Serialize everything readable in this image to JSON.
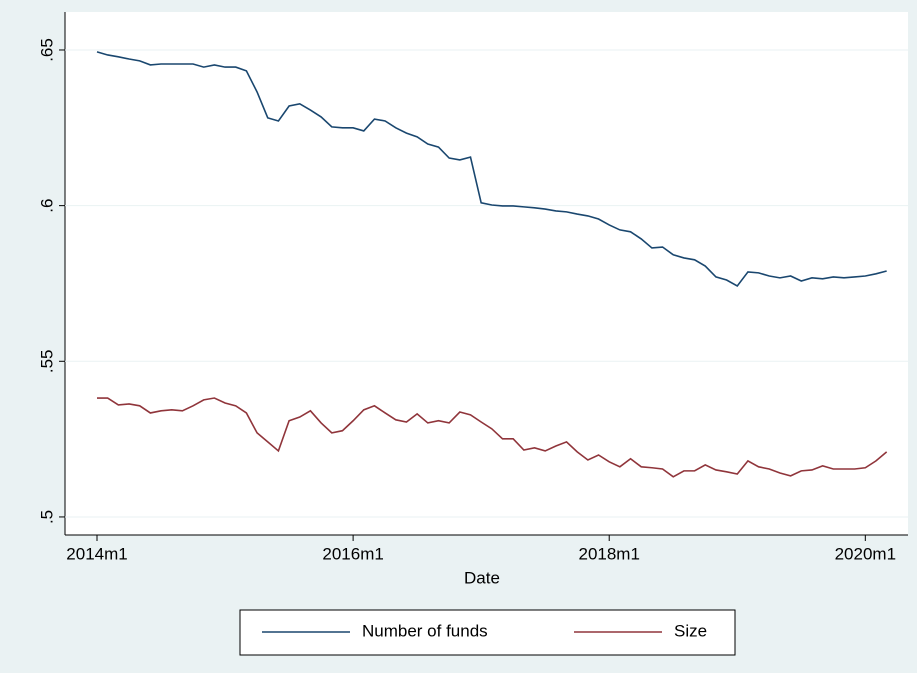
{
  "chart_data": {
    "type": "line",
    "x_label": "Date",
    "x": [
      648,
      649,
      650,
      651,
      652,
      653,
      654,
      655,
      656,
      657,
      658,
      659,
      660,
      661,
      662,
      663,
      664,
      665,
      666,
      667,
      668,
      669,
      670,
      671,
      672,
      673,
      674,
      675,
      676,
      677,
      678,
      679,
      680,
      681,
      682,
      683,
      684,
      685,
      686,
      687,
      688,
      689,
      690,
      691,
      692,
      693,
      694,
      695,
      696,
      697,
      698,
      699,
      700,
      701,
      702,
      703,
      704,
      705,
      706,
      707,
      708,
      709,
      710,
      711,
      712,
      713,
      714,
      715,
      716,
      717,
      718,
      719,
      720,
      721,
      722
    ],
    "series": [
      {
        "name": "Number of funds",
        "color": "#1a476f",
        "values": [
          0.6494,
          0.6484,
          0.6478,
          0.6471,
          0.6465,
          0.6452,
          0.6455,
          0.6455,
          0.6455,
          0.6455,
          0.6445,
          0.6452,
          0.6445,
          0.6445,
          0.6433,
          0.6365,
          0.6282,
          0.6272,
          0.632,
          0.6327,
          0.6307,
          0.6285,
          0.6253,
          0.625,
          0.625,
          0.624,
          0.6278,
          0.6272,
          0.625,
          0.6233,
          0.6221,
          0.6198,
          0.6188,
          0.6153,
          0.6147,
          0.6156,
          0.6009,
          0.6002,
          0.5999,
          0.5999,
          0.5996,
          0.5993,
          0.5989,
          0.5983,
          0.598,
          0.5973,
          0.5967,
          0.5957,
          0.5938,
          0.5922,
          0.5916,
          0.5893,
          0.5864,
          0.5867,
          0.5842,
          0.5832,
          0.5826,
          0.5806,
          0.5771,
          0.5761,
          0.5742,
          0.5787,
          0.5784,
          0.5774,
          0.5768,
          0.5774,
          0.5758,
          0.5768,
          0.5765,
          0.5771,
          0.5768,
          0.5771,
          0.5774,
          0.5781,
          0.579
        ]
      },
      {
        "name": "Size",
        "color": "#90353b",
        "values": [
          0.5382,
          0.5382,
          0.536,
          0.5363,
          0.5357,
          0.5334,
          0.5341,
          0.5344,
          0.5341,
          0.5357,
          0.5376,
          0.5382,
          0.5366,
          0.5357,
          0.5334,
          0.527,
          0.5241,
          0.5212,
          0.5309,
          0.5321,
          0.5341,
          0.5302,
          0.527,
          0.5277,
          0.5309,
          0.5344,
          0.5357,
          0.5334,
          0.5312,
          0.5305,
          0.5331,
          0.5302,
          0.5309,
          0.5302,
          0.5337,
          0.5328,
          0.5305,
          0.5283,
          0.5251,
          0.5251,
          0.5215,
          0.5222,
          0.5212,
          0.5228,
          0.5241,
          0.5209,
          0.5183,
          0.5199,
          0.5177,
          0.5161,
          0.5187,
          0.5161,
          0.5158,
          0.5154,
          0.5129,
          0.5148,
          0.5148,
          0.5167,
          0.5151,
          0.5145,
          0.5138,
          0.518,
          0.5161,
          0.5154,
          0.5141,
          0.5132,
          0.5148,
          0.5151,
          0.5164,
          0.5154,
          0.5154,
          0.5154,
          0.5158,
          0.518,
          0.5209
        ]
      }
    ],
    "xlim": [
      645,
      724
    ],
    "xticks": [
      {
        "value": 648,
        "label": "2014m1"
      },
      {
        "value": 672,
        "label": "2016m1"
      },
      {
        "value": 696,
        "label": "2018m1"
      },
      {
        "value": 720,
        "label": "2020m1"
      }
    ],
    "ylim": [
      0.4942,
      0.6622
    ],
    "yticks": [
      {
        "value": 0.5,
        "label": ".5"
      },
      {
        "value": 0.55,
        "label": ".55"
      },
      {
        "value": 0.6,
        "label": ".6"
      },
      {
        "value": 0.65,
        "label": ".65"
      }
    ],
    "grid": true,
    "legend": "bottom"
  }
}
